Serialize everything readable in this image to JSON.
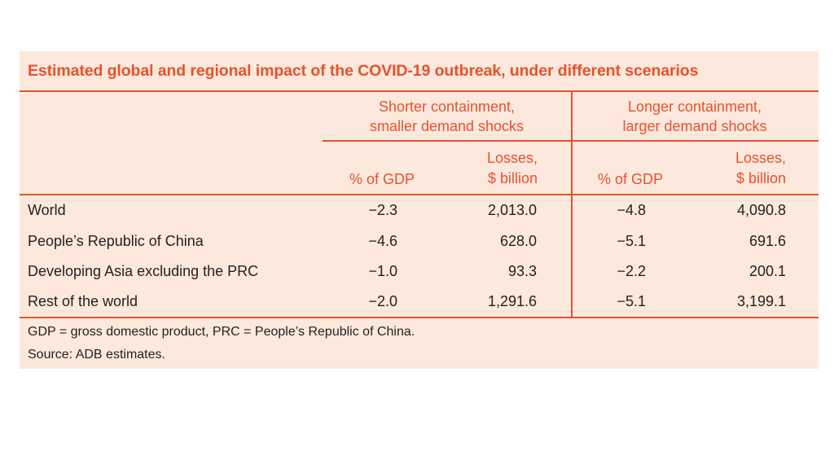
{
  "title": "Estimated global and regional impact of the COVID-19 outbreak, under different scenarios",
  "scenarios": [
    {
      "line1": "Shorter containment,",
      "line2": "smaller demand shocks"
    },
    {
      "line1": "Longer containment,",
      "line2": "larger demand shocks"
    }
  ],
  "columns": {
    "pct_gdp": "% of GDP",
    "losses_line1": "Losses,",
    "losses_line2": "$ billion"
  },
  "rows": [
    {
      "label": "World",
      "values": [
        "−2.3",
        "2,013.0",
        "−4.8",
        "4,090.8"
      ]
    },
    {
      "label": "People’s Republic of China",
      "values": [
        "−4.6",
        "628.0",
        "−5.1",
        "691.6"
      ]
    },
    {
      "label": "Developing Asia excluding the PRC",
      "values": [
        "−1.0",
        "93.3",
        "−2.2",
        "200.1"
      ]
    },
    {
      "label": "Rest of the world",
      "values": [
        "−2.0",
        "1,291.6",
        "−5.1",
        "3,199.1"
      ]
    }
  ],
  "notes": {
    "abbreviations": "GDP = gross domestic product, PRC = People’s Republic of China.",
    "source": "Source: ADB estimates."
  },
  "colors": {
    "accent": "#e5532d",
    "panel_background": "#fce8dc",
    "text": "#231f20"
  }
}
